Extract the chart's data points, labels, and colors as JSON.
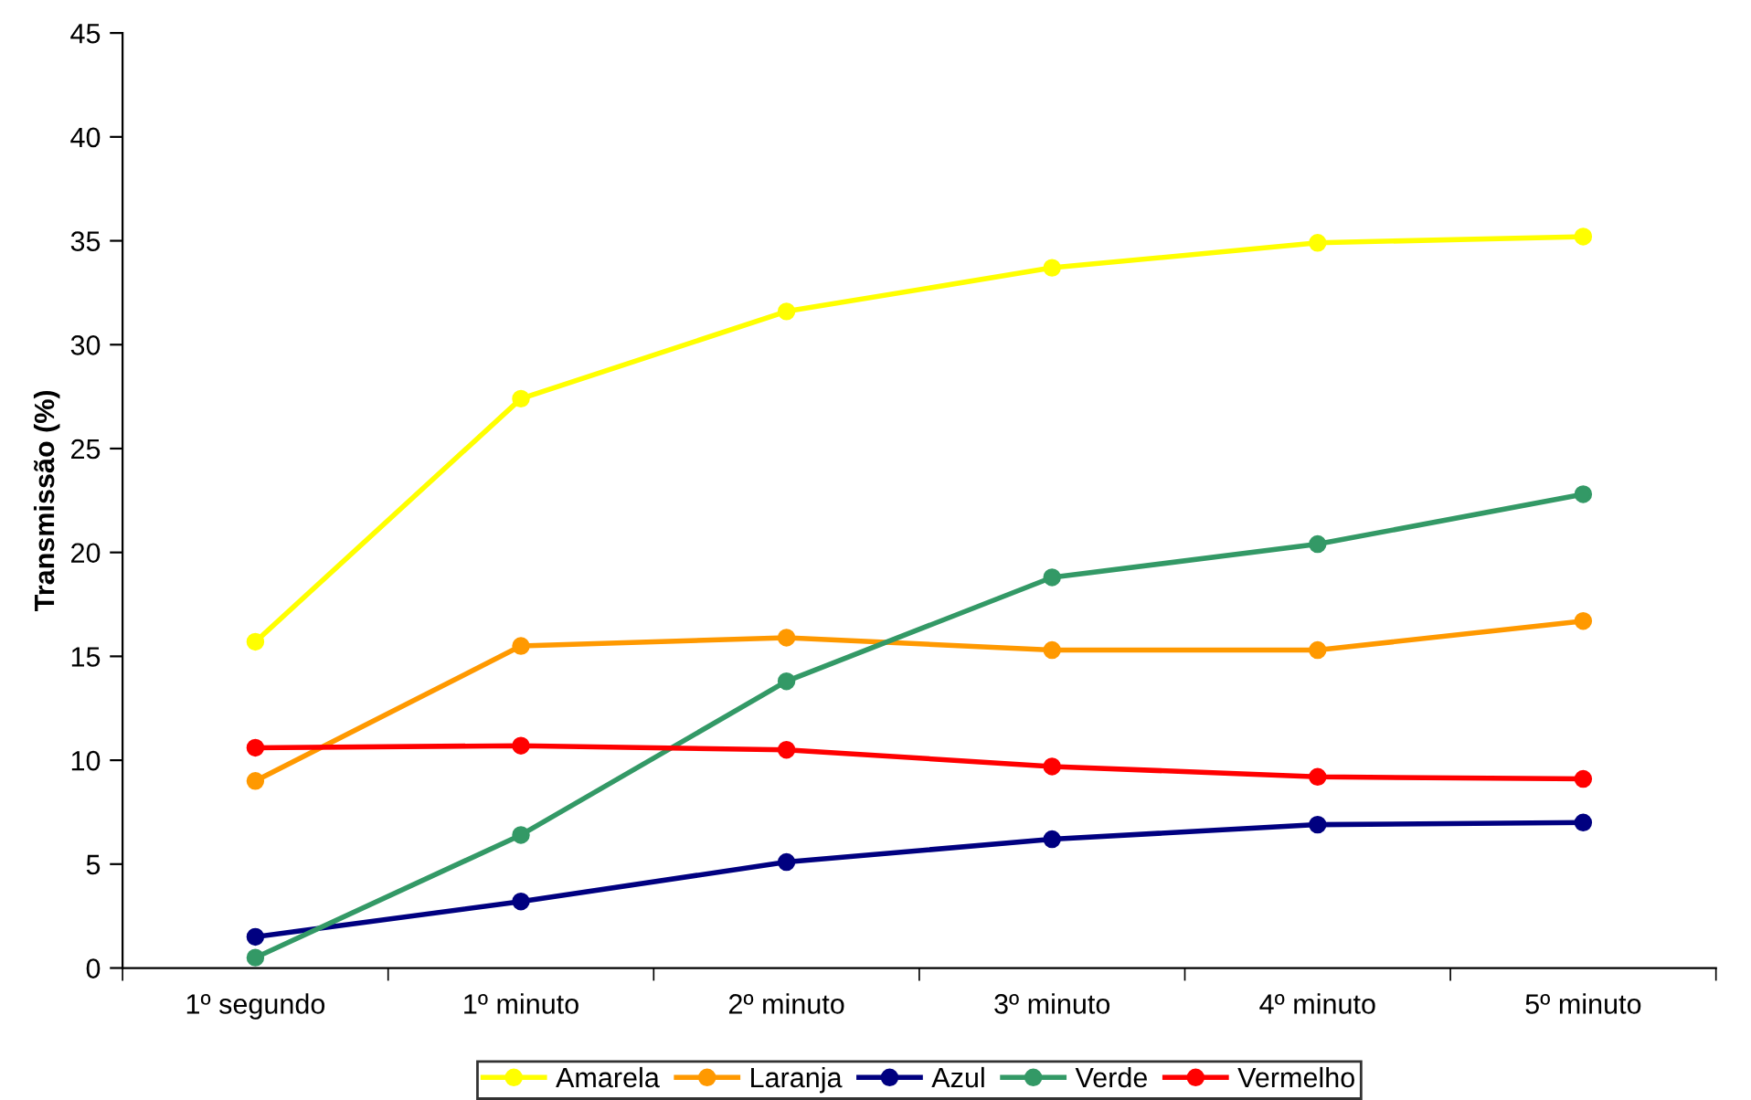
{
  "chart_data": {
    "type": "line",
    "ylabel": "Transmissão (%)",
    "categories": [
      "1º segundo",
      "1º minuto",
      "2º minuto",
      "3º minuto",
      "4º minuto",
      "5º minuto"
    ],
    "ylim": [
      0,
      45
    ],
    "yticks": [
      0,
      5,
      10,
      15,
      20,
      25,
      30,
      35,
      40,
      45
    ],
    "grid": false,
    "legend": "bottom",
    "marker": "circle",
    "line_style": "solid",
    "series": [
      {
        "name": "Amarela",
        "color": "#ffff00",
        "values": [
          15.7,
          27.4,
          31.6,
          33.7,
          34.9,
          35.2
        ]
      },
      {
        "name": "Laranja",
        "color": "#ff9900",
        "values": [
          9.0,
          15.5,
          15.9,
          15.3,
          15.3,
          16.7
        ]
      },
      {
        "name": "Azul",
        "color": "#000080",
        "values": [
          1.5,
          3.2,
          5.1,
          6.2,
          6.9,
          7.0
        ]
      },
      {
        "name": "Verde",
        "color": "#339966",
        "values": [
          0.5,
          6.4,
          13.8,
          18.8,
          20.4,
          22.8
        ]
      },
      {
        "name": "Vermelho",
        "color": "#ff0000",
        "values": [
          10.6,
          10.7,
          10.5,
          9.7,
          9.2,
          9.1
        ]
      }
    ]
  }
}
